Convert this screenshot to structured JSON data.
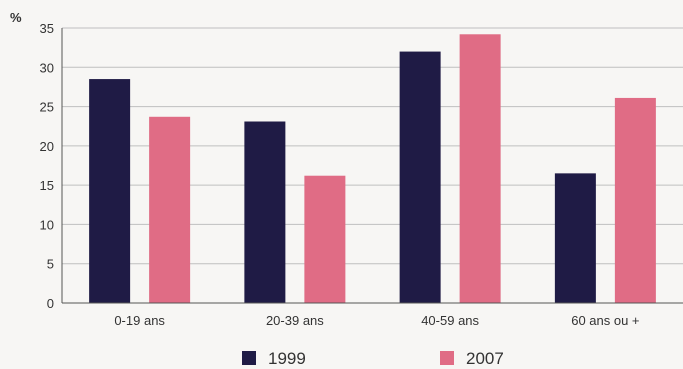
{
  "chart_data": {
    "type": "bar",
    "title": "",
    "xlabel": "",
    "ylabel": "%",
    "ylim": [
      0,
      35
    ],
    "yticks": [
      0,
      5,
      10,
      15,
      20,
      25,
      30,
      35
    ],
    "grid": true,
    "legend_position": "bottom",
    "categories": [
      "0-19 ans",
      "20-39 ans",
      "40-59 ans",
      "60 ans ou +"
    ],
    "series": [
      {
        "name": "1999",
        "color": "#1f1b45",
        "values": [
          28.5,
          23.1,
          32.0,
          16.5
        ]
      },
      {
        "name": "2007",
        "color": "#e06c85",
        "values": [
          23.7,
          16.2,
          34.2,
          26.1
        ]
      }
    ]
  }
}
